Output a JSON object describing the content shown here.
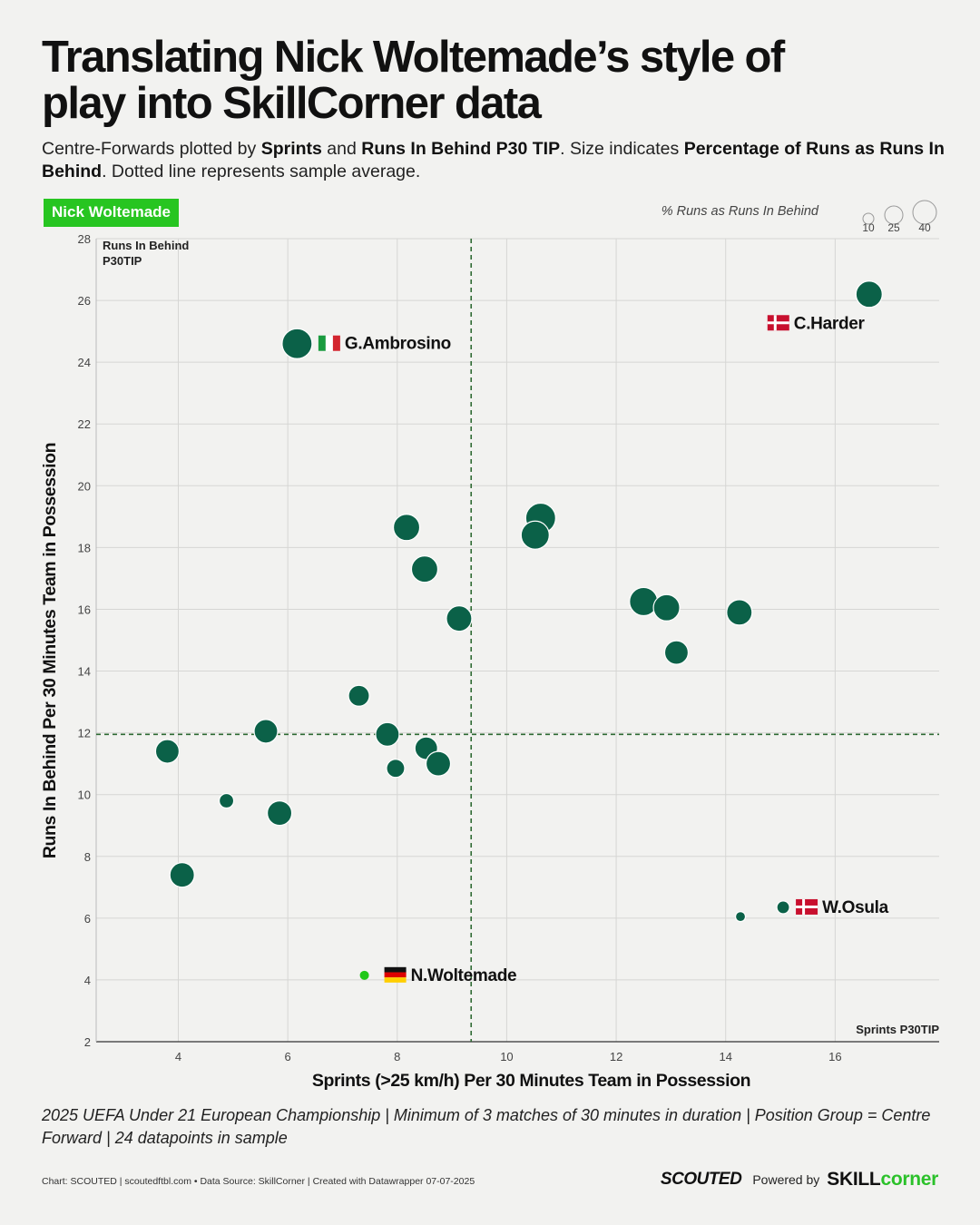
{
  "title_line1": "Translating Nick Woltemade’s style of",
  "title_line2": "play into SkillCorner data",
  "subtitle": {
    "part1": "Centre-Forwards plotted by ",
    "b1": "Sprints",
    "part2": " and ",
    "b2": "Runs In Behind P30 TIP",
    "part3": ". Size indicates ",
    "b3": "Percentage of Runs as Runs In Behind",
    "part4": ". Dotted line represents sample average."
  },
  "highlight_tag": "Nick Woltemade",
  "size_legend": {
    "label": "% Runs as Runs In Behind",
    "values": [
      "10",
      "25",
      "40"
    ]
  },
  "colors": {
    "point": "#0b6148",
    "highlight": "#1fc817",
    "grid": "#d6d6d4",
    "avg_line": "#2e6a33"
  },
  "chart_data": {
    "type": "scatter",
    "title": "Translating Nick Woltemade’s style of play into SkillCorner data",
    "xlabel": "Sprints (>25 km/h) Per 30 Minutes Team in Possession",
    "ylabel": "Runs In Behind Per 30 Minutes Team in Possession",
    "x_axis_corner_label": "Sprints P30TIP",
    "y_axis_corner_label_line1": "Runs In Behind",
    "y_axis_corner_label_line2": "P30TIP",
    "xlim": [
      2.5,
      17.9
    ],
    "ylim": [
      2,
      28
    ],
    "x_ticks": [
      4,
      6,
      8,
      10,
      12,
      14,
      16
    ],
    "y_ticks": [
      2,
      4,
      6,
      8,
      10,
      12,
      14,
      16,
      18,
      20,
      22,
      24,
      26,
      28
    ],
    "x_average": 9.35,
    "y_average": 11.95,
    "points": [
      {
        "x": 6.17,
        "y": 24.6,
        "size": 33,
        "label": "G.Ambrosino",
        "flag": "italy",
        "label_side": "right"
      },
      {
        "x": 16.62,
        "y": 26.2,
        "size": 29,
        "label": "C.Harder",
        "flag": "denmark",
        "label_side": "below-left"
      },
      {
        "x": 15.05,
        "y": 6.35,
        "size": 14,
        "label": "W.Osula",
        "flag": "denmark",
        "label_side": "right"
      },
      {
        "x": 7.4,
        "y": 4.15,
        "size": 10,
        "label": "N.Woltemade",
        "flag": "germany",
        "label_side": "right",
        "highlight": true
      },
      {
        "x": 8.17,
        "y": 18.65,
        "size": 29
      },
      {
        "x": 8.5,
        "y": 17.3,
        "size": 29
      },
      {
        "x": 9.13,
        "y": 15.7,
        "size": 28
      },
      {
        "x": 10.62,
        "y": 18.95,
        "size": 33
      },
      {
        "x": 10.52,
        "y": 18.4,
        "size": 31
      },
      {
        "x": 12.5,
        "y": 16.25,
        "size": 31
      },
      {
        "x": 12.92,
        "y": 16.05,
        "size": 29
      },
      {
        "x": 13.1,
        "y": 14.6,
        "size": 26
      },
      {
        "x": 14.25,
        "y": 15.9,
        "size": 28
      },
      {
        "x": 7.3,
        "y": 13.2,
        "size": 23
      },
      {
        "x": 5.6,
        "y": 12.05,
        "size": 26
      },
      {
        "x": 3.8,
        "y": 11.4,
        "size": 26
      },
      {
        "x": 7.82,
        "y": 11.95,
        "size": 26
      },
      {
        "x": 8.53,
        "y": 11.5,
        "size": 25
      },
      {
        "x": 8.75,
        "y": 11.0,
        "size": 27
      },
      {
        "x": 7.97,
        "y": 10.85,
        "size": 20
      },
      {
        "x": 4.88,
        "y": 9.8,
        "size": 16
      },
      {
        "x": 5.85,
        "y": 9.4,
        "size": 27
      },
      {
        "x": 4.07,
        "y": 7.4,
        "size": 27
      },
      {
        "x": 14.27,
        "y": 6.05,
        "size": 11
      }
    ]
  },
  "notes": "2025 UEFA Under 21 European Championship | Minimum of 3 matches of 30 minutes in duration | Position Group = Centre Forward  | 24 datapoints in sample",
  "credits": "Chart: SCOUTED | scoutedftbl.com • Data Source: SkillCorner | Created with Datawrapper 07-07-2025",
  "brand": {
    "scouted": "SCOUTED",
    "powered": "Powered by",
    "skill_a": "SKILL",
    "skill_b": "corner"
  }
}
